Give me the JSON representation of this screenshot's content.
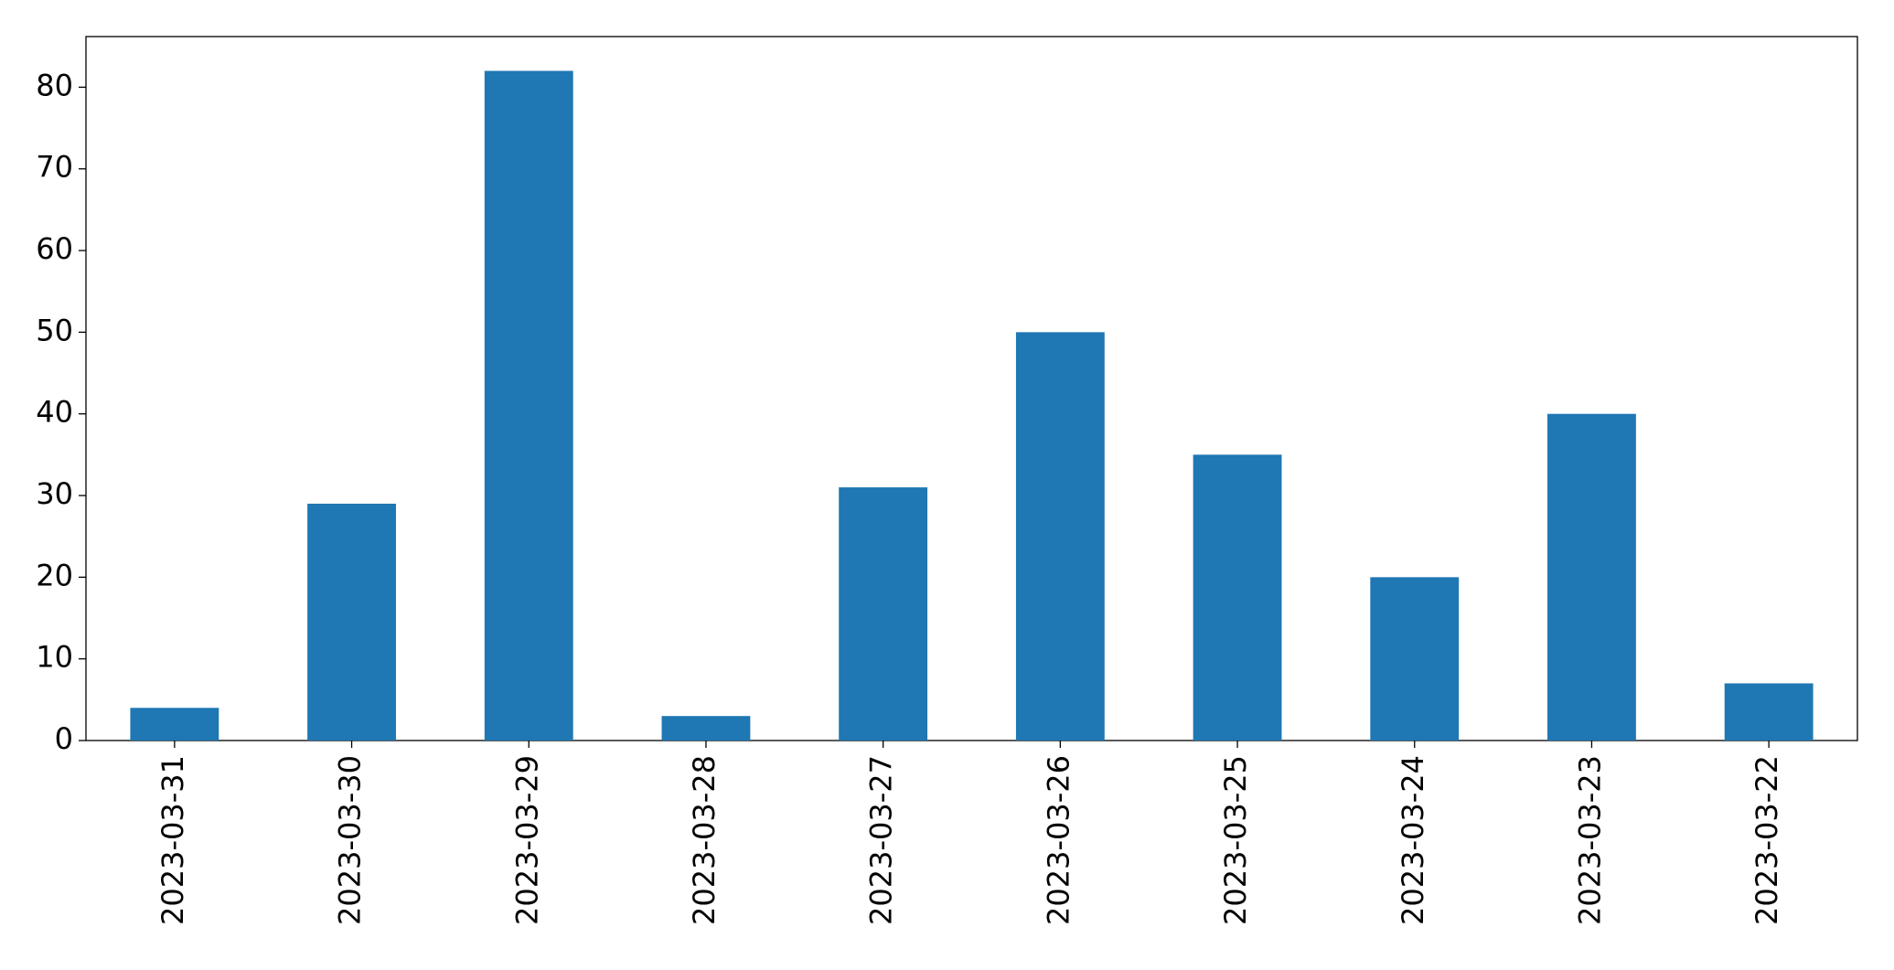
{
  "chart_data": {
    "type": "bar",
    "categories": [
      "2023-03-31",
      "2023-03-30",
      "2023-03-29",
      "2023-03-28",
      "2023-03-27",
      "2023-03-26",
      "2023-03-25",
      "2023-03-24",
      "2023-03-23",
      "2023-03-22"
    ],
    "values": [
      4,
      29,
      82,
      3,
      31,
      50,
      35,
      20,
      40,
      7
    ],
    "color": "#1f77b4",
    "ylim": [
      0,
      86.2
    ],
    "yticks": [
      0,
      10,
      20,
      30,
      40,
      50,
      60,
      70,
      80
    ],
    "grid": false
  }
}
